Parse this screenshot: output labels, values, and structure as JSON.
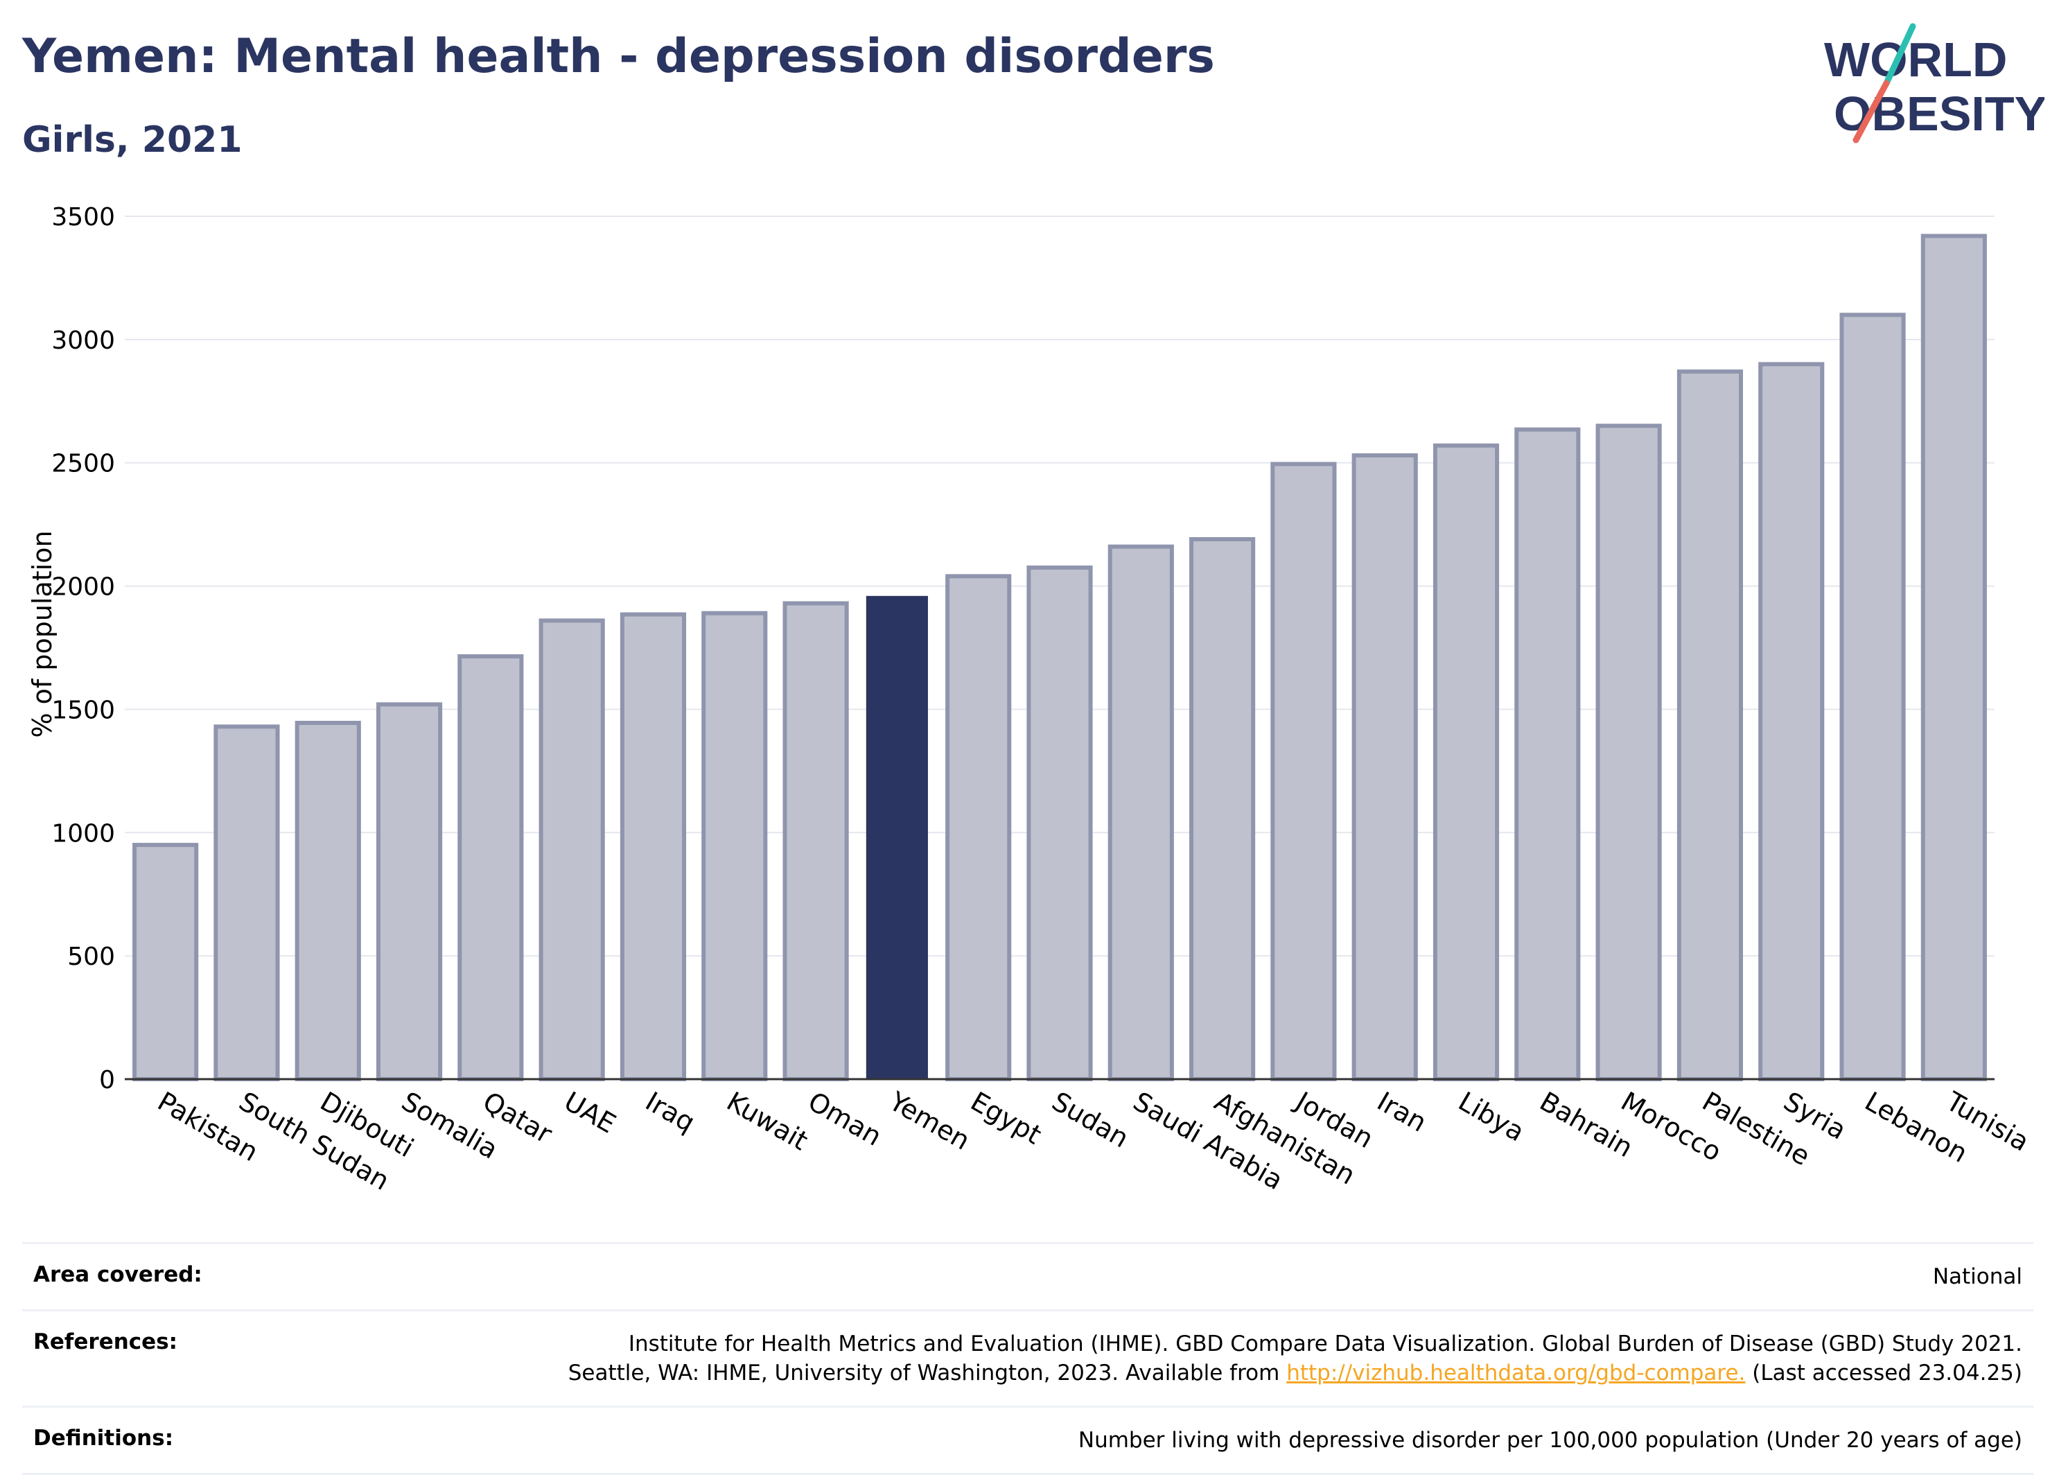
{
  "title": "Yemen: Mental health - depression disorders",
  "subtitle": "Girls, 2021",
  "logo": {
    "line1": "WORLD",
    "line2": "OBESITY"
  },
  "chart_data": {
    "type": "bar",
    "ylabel": "% of population",
    "ylim": [
      0,
      3500
    ],
    "yticks": [
      0,
      500,
      1000,
      1500,
      2000,
      2500,
      3000,
      3500
    ],
    "highlight": "Yemen",
    "colors": {
      "bar": "#bfc2ce",
      "bar_border": "#9095ae",
      "highlight": "#2b3561",
      "grid": "#e6e7ee"
    },
    "categories": [
      "Pakistan",
      "South Sudan",
      "Djibouti",
      "Somalia",
      "Qatar",
      "UAE",
      "Iraq",
      "Kuwait",
      "Oman",
      "Yemen",
      "Egypt",
      "Sudan",
      "Saudi Arabia",
      "Afghanistan",
      "Jordan",
      "Iran",
      "Libya",
      "Bahrain",
      "Morocco",
      "Palestine",
      "Syria",
      "Lebanon",
      "Tunisia"
    ],
    "values": [
      950,
      1430,
      1445,
      1520,
      1715,
      1860,
      1885,
      1890,
      1930,
      1960,
      2040,
      2075,
      2160,
      2190,
      2495,
      2530,
      2570,
      2635,
      2650,
      2870,
      2900,
      3100,
      3420
    ]
  },
  "footer": {
    "area_label": "Area covered:",
    "area_value": "National",
    "references_label": "References:",
    "references_line1": "Institute for Health Metrics and Evaluation (IHME). GBD Compare Data Visualization. Global Burden of Disease (GBD) Study 2021.",
    "references_line2_pre": "Seattle, WA: IHME, University of Washington, 2023. Available from ",
    "references_link": "http://vizhub.healthdata.org/gbd-compare.",
    "references_line2_post": " (Last accessed 23.04.25)",
    "definitions_label": "Definitions:",
    "definitions_value": "Number living with depressive disorder per 100,000 population (Under 20 years of age)"
  }
}
